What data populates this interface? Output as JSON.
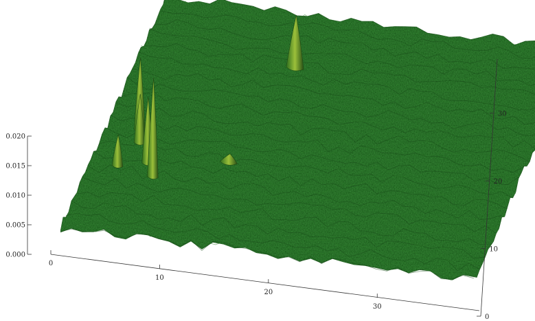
{
  "chart_data": {
    "type": "surface3d",
    "title": "",
    "xlabel": "",
    "ylabel": "",
    "zlabel": "",
    "x_range": [
      0,
      38
    ],
    "y_range": [
      0,
      38
    ],
    "z_range": [
      0,
      0.02
    ],
    "x_ticks": [
      "0",
      "10",
      "20",
      "30"
    ],
    "y_ticks": [
      "0",
      "10",
      "20",
      "30"
    ],
    "z_ticks": [
      "0.000",
      "0.005",
      "0.010",
      "0.015",
      "0.020"
    ],
    "surface_color": "#1f5a1f",
    "highlight_color": "#a8c838",
    "baseline_z": 0.002,
    "noise_amplitude": 0.0008,
    "peaks": [
      {
        "x": 6,
        "y": 10,
        "z": 0.0185,
        "width": 0.5
      },
      {
        "x": 5,
        "y": 12,
        "z": 0.013,
        "width": 0.5
      },
      {
        "x": 3.5,
        "y": 15,
        "z": 0.01,
        "width": 0.5
      },
      {
        "x": 3,
        "y": 17,
        "z": 0.014,
        "width": 0.5
      },
      {
        "x": 2.5,
        "y": 11,
        "z": 0.007,
        "width": 0.5
      },
      {
        "x": 14,
        "y": 30,
        "z": 0.0105,
        "width": 0.8
      },
      {
        "x": 12,
        "y": 14,
        "z": 0.003,
        "width": 0.8
      }
    ]
  }
}
